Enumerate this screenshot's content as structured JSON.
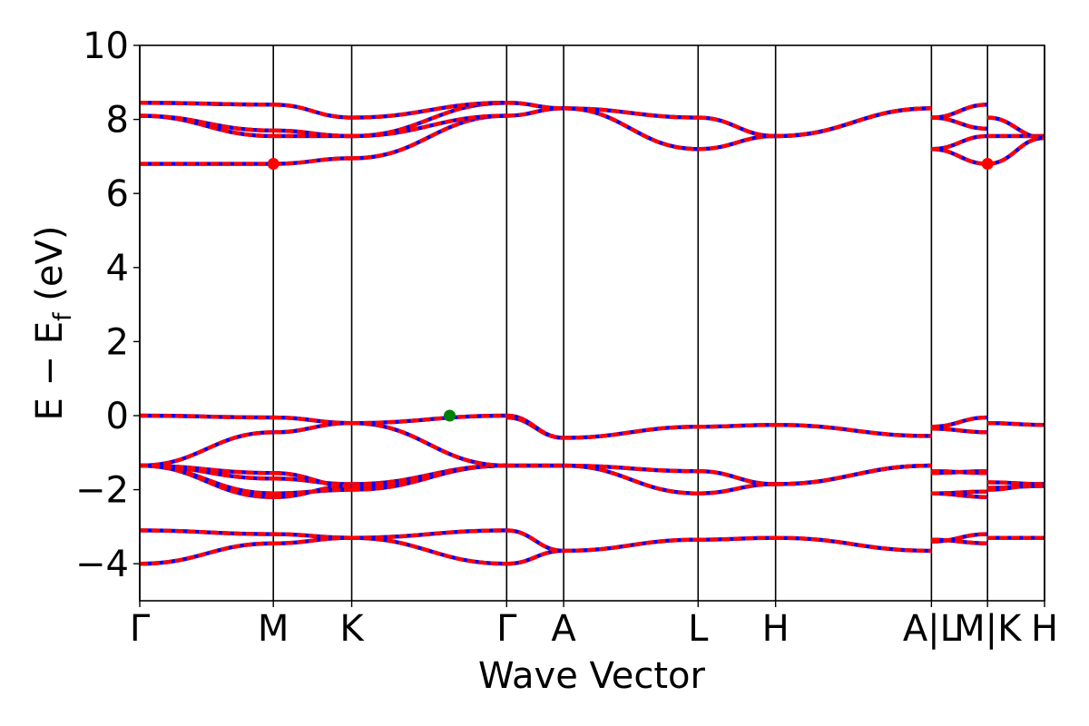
{
  "chart_data": {
    "type": "line",
    "xlabel": "Wave Vector",
    "ylabel": "E − E_f (eV)",
    "ylabel_main": "E − E",
    "ylabel_sub": "f",
    "ylabel_unit": " (eV)",
    "ylim": [
      -5,
      10
    ],
    "yticks": [
      -4,
      -2,
      0,
      2,
      4,
      6,
      8,
      10
    ],
    "ytick_labels": [
      "−4",
      "−2",
      "0",
      "2",
      "4",
      "6",
      "8",
      "10"
    ],
    "xlim": [
      0,
      10.16
    ],
    "kpoints": [
      {
        "label": "Γ",
        "x": 0.0
      },
      {
        "label": "M",
        "x": 1.5
      },
      {
        "label": "K",
        "x": 2.38
      },
      {
        "label": "Γ",
        "x": 4.12
      },
      {
        "label": "A",
        "x": 4.76
      },
      {
        "label": "L",
        "x": 6.27
      },
      {
        "label": "H",
        "x": 7.14
      },
      {
        "label": "A|L",
        "x": 8.89
      },
      {
        "label": "M|K",
        "x": 9.52
      },
      {
        "label": "H",
        "x": 10.16
      }
    ],
    "colors": {
      "spin_up": "#ff0000",
      "spin_down": "#0000ff",
      "extrema_cbm": "#ff0000",
      "extrema_vbm": "#008000",
      "kline": "#000000"
    },
    "segments": [
      {
        "x0": 0.0,
        "x1": 1.5,
        "bands": [
          [
            -4.0,
            -3.45
          ],
          [
            -3.1,
            -3.2
          ],
          [
            -1.35,
            -2.2
          ],
          [
            -1.35,
            -2.1
          ],
          [
            -1.35,
            -1.7
          ],
          [
            -1.35,
            -1.55
          ],
          [
            -1.35,
            -0.45
          ],
          [
            0.0,
            -0.05
          ],
          [
            6.8,
            6.8
          ],
          [
            8.1,
            7.55
          ],
          [
            8.1,
            7.7
          ],
          [
            8.45,
            8.4
          ]
        ]
      },
      {
        "x0": 1.5,
        "x1": 2.38,
        "bands": [
          [
            -3.45,
            -3.3
          ],
          [
            -3.2,
            -3.3
          ],
          [
            -2.2,
            -1.9
          ],
          [
            -2.1,
            -2.0
          ],
          [
            -1.7,
            -1.85
          ],
          [
            -1.55,
            -1.9
          ],
          [
            -0.45,
            -0.2
          ],
          [
            -0.05,
            -0.2
          ],
          [
            6.8,
            6.95
          ],
          [
            7.55,
            7.55
          ],
          [
            7.7,
            7.55
          ],
          [
            8.4,
            8.05
          ]
        ]
      },
      {
        "x0": 2.38,
        "x1": 4.12,
        "bands": [
          [
            -3.3,
            -4.0
          ],
          [
            -3.3,
            -3.1
          ],
          [
            -1.9,
            -1.35
          ],
          [
            -2.0,
            -1.35
          ],
          [
            -1.85,
            -1.35
          ],
          [
            -1.9,
            -1.35
          ],
          [
            -0.2,
            -1.35
          ],
          [
            -0.2,
            0.0
          ],
          [
            6.95,
            8.1
          ],
          [
            7.55,
            8.1
          ],
          [
            7.55,
            8.45
          ],
          [
            8.05,
            8.45
          ]
        ]
      },
      {
        "x0": 4.12,
        "x1": 4.76,
        "bands": [
          [
            -4.0,
            -3.65
          ],
          [
            -3.1,
            -3.65
          ],
          [
            -1.35,
            -1.35
          ],
          [
            -1.35,
            -1.35
          ],
          [
            -0.05,
            -0.6
          ],
          [
            0.0,
            -0.6
          ],
          [
            8.1,
            8.3
          ],
          [
            8.45,
            8.3
          ]
        ]
      },
      {
        "x0": 4.76,
        "x1": 6.27,
        "bands": [
          [
            -3.65,
            -3.35
          ],
          [
            -1.35,
            -2.1
          ],
          [
            -1.35,
            -1.5
          ],
          [
            -0.6,
            -0.3
          ],
          [
            8.3,
            7.2
          ],
          [
            8.3,
            8.05
          ]
        ]
      },
      {
        "x0": 6.27,
        "x1": 7.14,
        "bands": [
          [
            -3.35,
            -3.3
          ],
          [
            -2.1,
            -1.85
          ],
          [
            -1.5,
            -1.85
          ],
          [
            -0.3,
            -0.25
          ],
          [
            7.2,
            7.55
          ],
          [
            8.05,
            7.55
          ]
        ]
      },
      {
        "x0": 7.14,
        "x1": 8.89,
        "bands": [
          [
            -3.3,
            -3.65
          ],
          [
            -1.85,
            -1.35
          ],
          [
            -1.85,
            -1.35
          ],
          [
            -0.25,
            -0.55
          ],
          [
            7.55,
            8.3
          ],
          [
            7.55,
            8.3
          ]
        ]
      },
      {
        "x0": 8.89,
        "x1": 9.52,
        "bands": [
          [
            -3.4,
            -3.2
          ],
          [
            -3.35,
            -3.45
          ],
          [
            -2.1,
            -2.2
          ],
          [
            -2.1,
            -2.05
          ],
          [
            -1.55,
            -1.5
          ],
          [
            -1.5,
            -1.55
          ],
          [
            -0.3,
            -0.05
          ],
          [
            -0.35,
            -0.45
          ],
          [
            7.2,
            6.8
          ],
          [
            7.2,
            7.55
          ],
          [
            8.05,
            7.75
          ],
          [
            8.05,
            8.4
          ]
        ]
      },
      {
        "x0": 9.52,
        "x1": 10.16,
        "bands": [
          [
            -3.3,
            -3.3
          ],
          [
            -1.8,
            -1.85
          ],
          [
            -1.95,
            -1.9
          ],
          [
            -2.0,
            -1.85
          ],
          [
            -0.2,
            -0.25
          ],
          [
            6.8,
            7.5
          ],
          [
            7.55,
            7.55
          ],
          [
            8.05,
            7.5
          ]
        ]
      }
    ],
    "markers": [
      {
        "x": 1.5,
        "y": 6.8,
        "kind": "extrema_cbm"
      },
      {
        "x": 9.52,
        "y": 6.8,
        "kind": "extrema_cbm"
      },
      {
        "x": 3.48,
        "y": 0.0,
        "kind": "extrema_vbm"
      }
    ]
  }
}
